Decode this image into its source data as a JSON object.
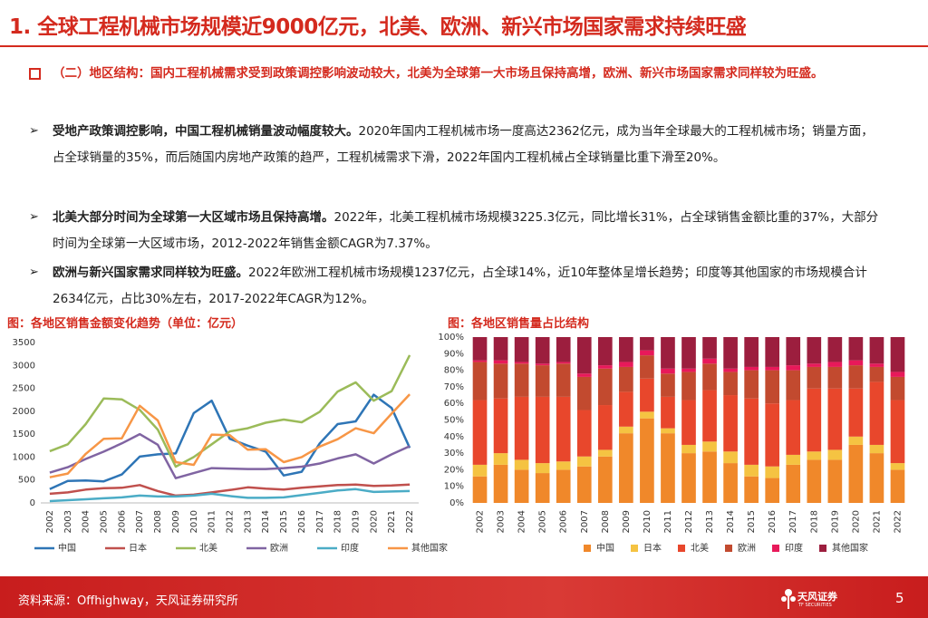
{
  "header": {
    "title": "1. 全球工程机械市场规模近9000亿元，北美、欧洲、新兴市场国家需求持续旺盛"
  },
  "section": {
    "text": "（二）地区结构：国内工程机械需求受到政策调控影响波动较大，北美为全球第一大市场且保持高增，欧洲、新兴市场国家需求同样较为旺盛。"
  },
  "bullets": [
    {
      "bold": "受地产政策调控影响，中国工程机械销量波动幅度较大。",
      "text": "2020年国内工程机械市场一度高达2362亿元，成为当年全球最大的工程机械市场；销量方面，占全球销量的35%，而后随国内房地产政策的趋严，工程机械需求下滑，2022年国内工程机械占全球销量比重下滑至20%。"
    },
    {
      "bold": "北美大部分时间为全球第一大区域市场且保持高增。",
      "text": "2022年，北美工程机械市场规模3225.3亿元，同比增长31%，占全球销售金额比重的37%，大部分时间为全球第一大区域市场，2012-2022年销售金额CAGR为7.37%。"
    },
    {
      "bold": "欧洲与新兴国家需求同样较为旺盛。",
      "text": "2022年欧洲工程机械市场规模1237亿元，占全球14%，近10年整体呈增长趋势；印度等其他国家的市场规模合计2634亿元，占比30%左右，2017-2022年CAGR为12%。"
    }
  ],
  "chart_data": [
    {
      "type": "line",
      "title": "图：各地区销售金额变化趋势（单位：亿元）",
      "categories": [
        "2002",
        "2003",
        "2004",
        "2005",
        "2006",
        "2007",
        "2008",
        "2009",
        "2010",
        "2011",
        "2012",
        "2013",
        "2014",
        "2015",
        "2016",
        "2017",
        "2018",
        "2019",
        "2020",
        "2021",
        "2022"
      ],
      "ylim": [
        0,
        3500
      ],
      "yticks": [
        0,
        500,
        1000,
        1500,
        2000,
        2500,
        3000,
        3500
      ],
      "grid": false,
      "series": [
        {
          "name": "中国",
          "color": "#2e75b6",
          "values": [
            300,
            480,
            490,
            470,
            620,
            1010,
            1060,
            1080,
            1960,
            2230,
            1400,
            1250,
            1120,
            600,
            680,
            1300,
            1720,
            1780,
            2362,
            2070,
            1200
          ]
        },
        {
          "name": "日本",
          "color": "#c0504d",
          "values": [
            200,
            230,
            290,
            320,
            330,
            390,
            260,
            160,
            180,
            230,
            280,
            340,
            310,
            290,
            330,
            360,
            390,
            400,
            370,
            380,
            400
          ]
        },
        {
          "name": "北美",
          "color": "#9bbb59",
          "values": [
            1130,
            1280,
            1720,
            2280,
            2260,
            2030,
            1600,
            790,
            1000,
            1280,
            1560,
            1630,
            1750,
            1820,
            1760,
            1990,
            2430,
            2630,
            2230,
            2440,
            3225.3
          ]
        },
        {
          "name": "欧洲",
          "color": "#8064a2",
          "values": [
            660,
            780,
            960,
            1120,
            1300,
            1500,
            1270,
            540,
            650,
            760,
            750,
            740,
            740,
            760,
            790,
            860,
            970,
            1060,
            860,
            1060,
            1237
          ]
        },
        {
          "name": "印度",
          "color": "#4bacc6",
          "values": [
            40,
            60,
            80,
            100,
            120,
            160,
            140,
            140,
            160,
            200,
            150,
            110,
            110,
            120,
            170,
            220,
            270,
            300,
            240,
            250,
            260
          ]
        },
        {
          "name": "其他国家",
          "color": "#f79646",
          "values": [
            560,
            640,
            1070,
            1400,
            1410,
            2120,
            1800,
            890,
            830,
            1490,
            1480,
            1160,
            1170,
            890,
            1000,
            1230,
            1390,
            1630,
            1520,
            1950,
            2370
          ]
        }
      ]
    },
    {
      "type": "stacked_bar",
      "title": "图：各地区销售量占比结构",
      "categories": [
        "2002",
        "2003",
        "2004",
        "2005",
        "2006",
        "2007",
        "2008",
        "2009",
        "2010",
        "2011",
        "2012",
        "2013",
        "2014",
        "2015",
        "2016",
        "2017",
        "2018",
        "2019",
        "2020",
        "2021",
        "2022"
      ],
      "ylim": [
        0,
        100
      ],
      "yticks": [
        {
          "value": 0,
          "label": "0%"
        },
        {
          "value": 10,
          "label": "10%"
        },
        {
          "value": 20,
          "label": "20%"
        },
        {
          "value": 30,
          "label": "30%"
        },
        {
          "value": 40,
          "label": "40%"
        },
        {
          "value": 50,
          "label": "50%"
        },
        {
          "value": 60,
          "label": "60%"
        },
        {
          "value": 70,
          "label": "70%"
        },
        {
          "value": 80,
          "label": "80%"
        },
        {
          "value": 90,
          "label": "90%"
        },
        {
          "value": 100,
          "label": "100%"
        }
      ],
      "grid": false,
      "series": [
        {
          "name": "中国",
          "color": "#f0882a",
          "values": [
            16,
            23,
            20,
            18,
            20,
            22,
            28,
            42,
            51,
            42,
            30,
            31,
            24,
            16,
            15,
            23,
            26,
            26,
            35,
            30,
            20
          ]
        },
        {
          "name": "日本",
          "color": "#f5c342",
          "values": [
            7,
            7,
            6,
            6,
            5,
            6,
            4,
            4,
            4,
            3,
            5,
            6,
            7,
            7,
            7,
            6,
            5,
            6,
            5,
            5,
            4
          ]
        },
        {
          "name": "北美",
          "color": "#e8472c",
          "values": [
            39,
            33,
            38,
            40,
            39,
            28,
            27,
            21,
            20,
            19,
            27,
            31,
            34,
            40,
            38,
            33,
            38,
            37,
            29,
            38,
            38
          ]
        },
        {
          "name": "欧洲",
          "color": "#c24a2f",
          "values": [
            23,
            21,
            20,
            19,
            20,
            20,
            22,
            15,
            14,
            14,
            17,
            16,
            14,
            17,
            20,
            18,
            13,
            13,
            14,
            9,
            14
          ]
        },
        {
          "name": "印度",
          "color": "#e8195a",
          "values": [
            1,
            2,
            1,
            1,
            1,
            2,
            2,
            3,
            3,
            3,
            2,
            3,
            2,
            2,
            2,
            3,
            2,
            3,
            3,
            2,
            3
          ]
        },
        {
          "name": "其他国家",
          "color": "#9c1e3e",
          "values": [
            14,
            14,
            15,
            16,
            15,
            22,
            17,
            15,
            8,
            19,
            19,
            13,
            19,
            18,
            18,
            17,
            16,
            15,
            14,
            16,
            21
          ]
        }
      ]
    }
  ],
  "footer": {
    "source": "资料来源：Offhighway，天风证券研究所",
    "logo": "天风证券",
    "logo_en": "TF SECURITIES",
    "page": "5"
  }
}
